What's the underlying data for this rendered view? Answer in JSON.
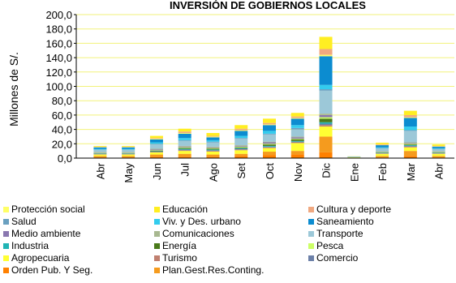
{
  "chart_data": {
    "type": "bar",
    "stacked": true,
    "title": "INVERSIÓN DE GOBIERNOS LOCALES",
    "ylabel": "Millones de S/.",
    "xlabel": "",
    "ylim": [
      0,
      200
    ],
    "yticks": [
      "0,0",
      "20,0",
      "40,0",
      "60,0",
      "80,0",
      "100,0",
      "120,0",
      "140,0",
      "160,0",
      "180,0",
      "200,0"
    ],
    "grid": true,
    "categories": [
      "Abr",
      "May",
      "Jun",
      "Jul",
      "Ago",
      "Set",
      "Oct",
      "Nov",
      "Dic",
      "Ene",
      "Feb",
      "Mar",
      "Abr"
    ],
    "legend_position": "bottom",
    "series": [
      {
        "name": "Orden Pub. Y Seg.",
        "color": "#ff8000",
        "values": [
          1,
          1,
          2,
          2,
          2,
          3,
          4,
          5,
          8,
          0.3,
          1,
          3,
          1
        ]
      },
      {
        "name": "Plan.Gest.Res.Conting.",
        "color": "#f59b1e",
        "values": [
          2,
          2,
          3,
          4,
          3,
          3,
          5,
          5,
          22,
          0.3,
          2,
          7,
          2
        ]
      },
      {
        "name": "Agropecuaria",
        "color": "#ffff33",
        "values": [
          2,
          2,
          3,
          4,
          4,
          5,
          5,
          11,
          14,
          0.5,
          3,
          5,
          3
        ]
      },
      {
        "name": "Turismo",
        "color": "#c08070",
        "values": [
          0.5,
          0.5,
          0.5,
          1,
          1,
          1,
          1,
          1,
          2,
          0,
          0.5,
          1,
          0.5
        ]
      },
      {
        "name": "Comercio",
        "color": "#6c80a8",
        "values": [
          0.5,
          0.5,
          0.5,
          1,
          1,
          1,
          1,
          1,
          2,
          0,
          0.5,
          1,
          0.5
        ]
      },
      {
        "name": "Industria",
        "color": "#20b4b4",
        "values": [
          0.5,
          0.5,
          0.5,
          1,
          1,
          1,
          1,
          1,
          2,
          0,
          0.5,
          1,
          0.5
        ]
      },
      {
        "name": "Energía",
        "color": "#4a7a1a",
        "values": [
          0.5,
          0.5,
          1,
          1,
          1,
          1,
          2,
          2,
          5,
          0,
          0.5,
          1,
          0.5
        ]
      },
      {
        "name": "Pesca",
        "color": "#ccff66",
        "values": [
          0.5,
          0.5,
          0.5,
          1,
          1,
          1,
          1,
          1,
          2,
          0,
          0.5,
          1,
          0.5
        ]
      },
      {
        "name": "Medio ambiente",
        "color": "#8a78b0",
        "values": [
          0.5,
          0.5,
          1,
          1,
          1,
          1,
          2,
          2,
          3,
          0,
          0.5,
          1,
          0.5
        ]
      },
      {
        "name": "Comunicaciones",
        "color": "#a8b890",
        "values": [
          0.5,
          0.5,
          1,
          1,
          1,
          1,
          1,
          1,
          2,
          0,
          0.5,
          1,
          0.5
        ]
      },
      {
        "name": "Transporte",
        "color": "#9cc8d8",
        "values": [
          3,
          3,
          6,
          7,
          6,
          9,
          10,
          10,
          32,
          0.5,
          4,
          16,
          3
        ]
      },
      {
        "name": "Salud",
        "color": "#6aa0c0",
        "values": [
          0.5,
          0.5,
          1,
          1,
          1,
          1,
          1,
          2,
          2,
          0,
          0.5,
          1,
          0.5
        ]
      },
      {
        "name": "Viv. y Des. urbano",
        "color": "#33ccee",
        "values": [
          1,
          1,
          2,
          3,
          2,
          3,
          4,
          4,
          6,
          0.2,
          1,
          5,
          1
        ]
      },
      {
        "name": "Saneamiento",
        "color": "#0c8cd0",
        "values": [
          2,
          2,
          4,
          6,
          4,
          7,
          8,
          9,
          40,
          0.3,
          3,
          12,
          2
        ]
      },
      {
        "name": "Protección social",
        "color": "#ffff66",
        "values": [
          0.5,
          0.5,
          1,
          1,
          1,
          1,
          1,
          1,
          2,
          0,
          0.5,
          1,
          0.5
        ]
      },
      {
        "name": "Cultura y deporte",
        "color": "#f0a880",
        "values": [
          0.5,
          0.5,
          1,
          2,
          1,
          2,
          2,
          2,
          8,
          0.1,
          1,
          3,
          0.5
        ]
      },
      {
        "name": "Educación",
        "color": "#ffee22",
        "values": [
          1,
          1,
          3,
          4,
          4,
          5,
          6,
          5,
          17,
          0.3,
          2,
          6,
          2
        ]
      }
    ]
  },
  "legend": [
    [
      "Protección social",
      "Educación",
      "Cultura y deporte"
    ],
    [
      "Salud",
      "Viv. y Des. urbano",
      "Saneamiento"
    ],
    [
      "Medio ambiente",
      "Comunicaciones",
      "Transporte"
    ],
    [
      "Industria",
      "Energía",
      "Pesca"
    ],
    [
      "Agropecuaria",
      "Turismo",
      "Comercio"
    ],
    [
      "Orden Pub. Y Seg.",
      "Plan.Gest.Res.Conting.",
      ""
    ]
  ]
}
